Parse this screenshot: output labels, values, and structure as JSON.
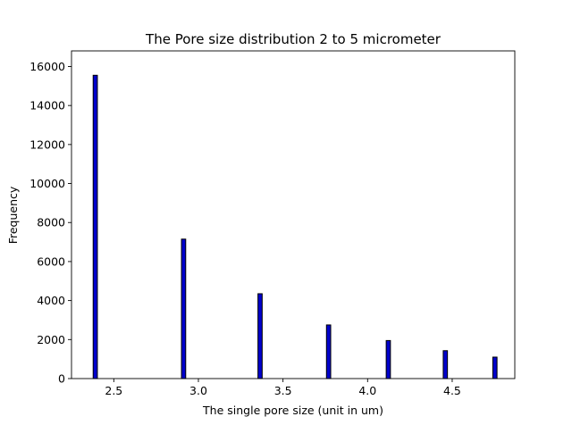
{
  "chart_data": {
    "type": "bar",
    "title": "The Pore size distribution 2 to 5 micrometer",
    "xlabel": "The single pore size (unit in um)",
    "ylabel": "Frequency",
    "xlim": [
      2.25,
      4.87
    ],
    "ylim": [
      0,
      16800
    ],
    "xticks": [
      {
        "value": 2.5,
        "label": "2.5"
      },
      {
        "value": 3.0,
        "label": "3.0"
      },
      {
        "value": 3.5,
        "label": "3.5"
      },
      {
        "value": 4.0,
        "label": "4.0"
      },
      {
        "value": 4.5,
        "label": "4.5"
      }
    ],
    "yticks": [
      {
        "value": 0,
        "label": "0"
      },
      {
        "value": 2000,
        "label": "2000"
      },
      {
        "value": 4000,
        "label": "4000"
      },
      {
        "value": 6000,
        "label": "6000"
      },
      {
        "value": 8000,
        "label": "8000"
      },
      {
        "value": 10000,
        "label": "10000"
      },
      {
        "value": 12000,
        "label": "12000"
      },
      {
        "value": 14000,
        "label": "14000"
      },
      {
        "value": 16000,
        "label": "16000"
      }
    ],
    "bars": [
      {
        "x_start": 2.378,
        "x_end": 2.403,
        "value": 15550
      },
      {
        "x_start": 2.9,
        "x_end": 2.925,
        "value": 7150
      },
      {
        "x_start": 3.352,
        "x_end": 3.377,
        "value": 4350
      },
      {
        "x_start": 3.757,
        "x_end": 3.782,
        "value": 2750
      },
      {
        "x_start": 4.11,
        "x_end": 4.135,
        "value": 1950
      },
      {
        "x_start": 4.447,
        "x_end": 4.472,
        "value": 1430
      },
      {
        "x_start": 4.74,
        "x_end": 4.765,
        "value": 1100
      }
    ],
    "bar_color": "#0000cc",
    "edge_color": "#000000",
    "grid": false,
    "legend": "none"
  }
}
